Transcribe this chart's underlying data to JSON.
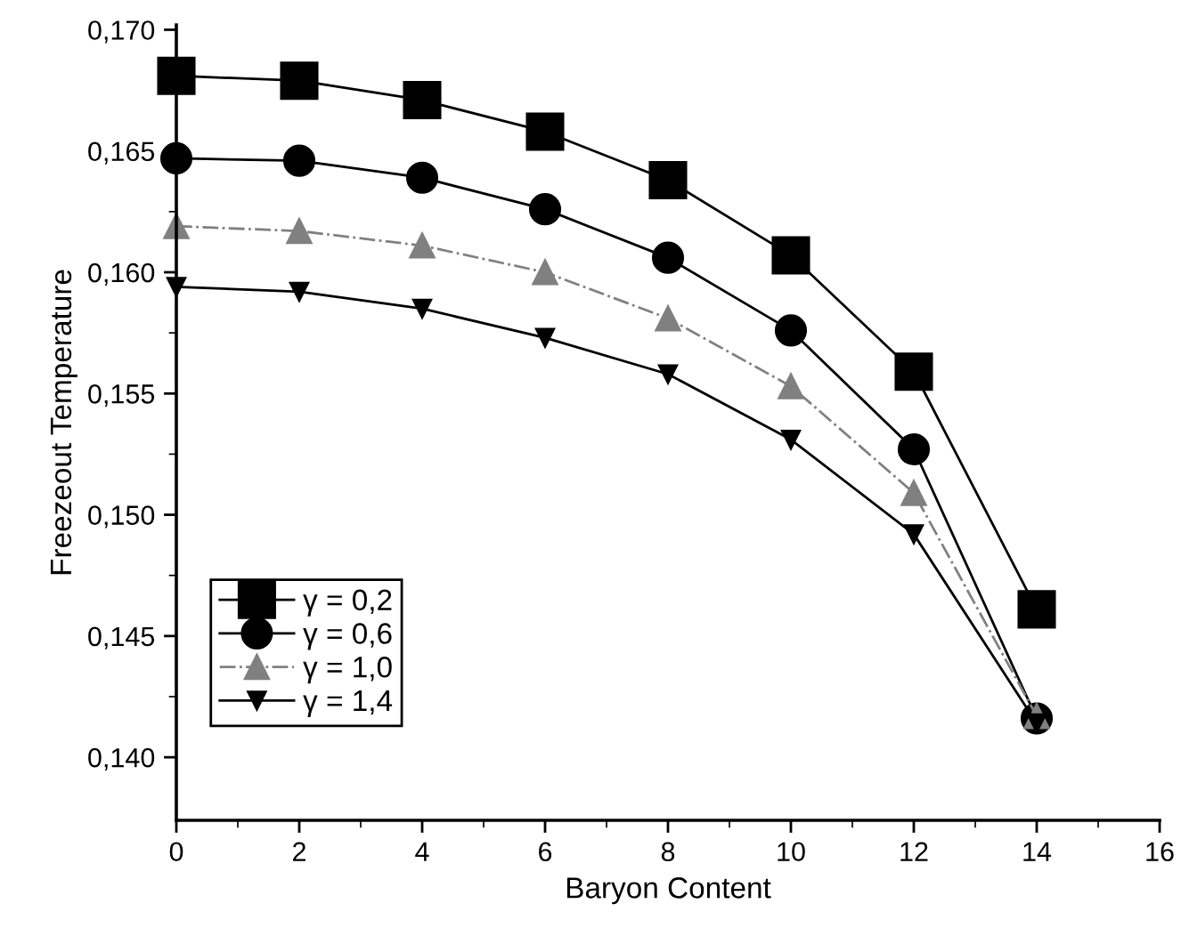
{
  "chart_data": {
    "type": "line",
    "xlabel": "Baryon Content",
    "ylabel": "Freezeout Temperature",
    "x": [
      0,
      2,
      4,
      6,
      8,
      10,
      12,
      14
    ],
    "series": [
      {
        "name": "γ = 0,2",
        "color": "#000000",
        "marker": "square",
        "line_style": "solid",
        "values": [
          0.1681,
          0.1679,
          0.1671,
          0.1658,
          0.1638,
          0.1607,
          0.1559,
          0.1461
        ]
      },
      {
        "name": "γ = 0,6",
        "color": "#000000",
        "marker": "circle",
        "line_style": "solid",
        "values": [
          0.1647,
          0.1646,
          0.1639,
          0.1626,
          0.1606,
          0.1576,
          0.1527,
          0.1416
        ]
      },
      {
        "name": "γ = 1,0",
        "color": "#808080",
        "marker": "triangle",
        "line_style": "dotted",
        "values": [
          0.1619,
          0.1617,
          0.1611,
          0.16,
          0.1581,
          0.1553,
          0.1509,
          0.1417
        ]
      },
      {
        "name": "γ = 1,4",
        "color": "#000000",
        "marker": "triangle_down",
        "line_style": "solid",
        "values": [
          0.1594,
          0.1592,
          0.1585,
          0.1573,
          0.1558,
          0.1531,
          0.1492,
          0.1414
        ]
      }
    ],
    "xlim": [
      0,
      16
    ],
    "ylim": [
      0.1374,
      0.1702
    ],
    "xticks": [
      {
        "value": 0,
        "label": "0"
      },
      {
        "value": 1,
        "label": null
      },
      {
        "value": 2,
        "label": "2"
      },
      {
        "value": 3,
        "label": null
      },
      {
        "value": 4,
        "label": "4"
      },
      {
        "value": 5,
        "label": null
      },
      {
        "value": 6,
        "label": "6"
      },
      {
        "value": 7,
        "label": null
      },
      {
        "value": 8,
        "label": "8"
      },
      {
        "value": 9,
        "label": null
      },
      {
        "value": 10,
        "label": "10"
      },
      {
        "value": 11,
        "label": null
      },
      {
        "value": 12,
        "label": "12"
      },
      {
        "value": 13,
        "label": null
      },
      {
        "value": 14,
        "label": "14"
      },
      {
        "value": 15,
        "label": null
      },
      {
        "value": 16,
        "label": "16"
      }
    ],
    "yticks": [
      {
        "value": 0.14,
        "label": "0,140"
      },
      {
        "value": 0.1425,
        "label": null
      },
      {
        "value": 0.145,
        "label": "0,145"
      },
      {
        "value": 0.1475,
        "label": null
      },
      {
        "value": 0.15,
        "label": "0,150"
      },
      {
        "value": 0.1525,
        "label": null
      },
      {
        "value": 0.155,
        "label": "0,155"
      },
      {
        "value": 0.1575,
        "label": null
      },
      {
        "value": 0.16,
        "label": "0,160"
      },
      {
        "value": 0.1625,
        "label": null
      },
      {
        "value": 0.165,
        "label": "0,165"
      },
      {
        "value": 0.1675,
        "label": null
      },
      {
        "value": 0.17,
        "label": "0,170"
      }
    ],
    "grid": false,
    "legend": "bottom left"
  }
}
